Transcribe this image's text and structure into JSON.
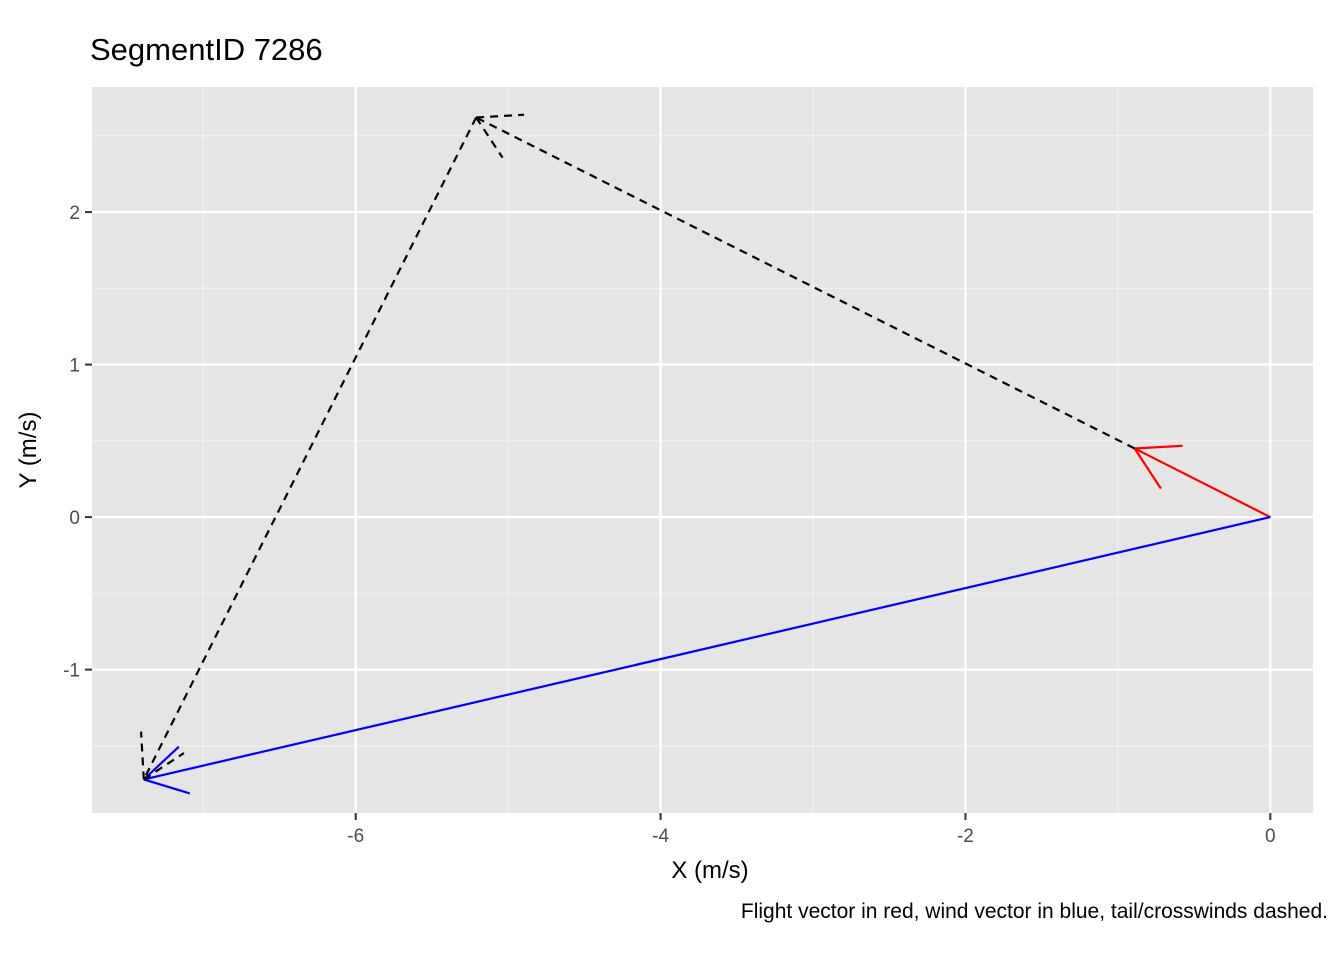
{
  "chart_data": {
    "type": "line",
    "title": "SegmentID 7286",
    "xlabel": "X (m/s)",
    "ylabel": "Y (m/s)",
    "caption": "Flight vector in red, wind vector in blue, tail/crosswinds dashed.",
    "xlim": [
      -7.73,
      0.28
    ],
    "ylim": [
      -1.94,
      2.82
    ],
    "x_ticks": [
      -6,
      -4,
      -2,
      0
    ],
    "x_tick_labels": [
      "-6",
      "-4",
      "-2",
      "0"
    ],
    "y_ticks": [
      -1,
      0,
      1,
      2
    ],
    "y_tick_labels": [
      "-1",
      "0",
      "1",
      "2"
    ],
    "grid": true,
    "background": "#e5e5e5",
    "series": [
      {
        "color": "#ff0000",
        "linestyle": "solid",
        "arrow": true,
        "from": [
          0,
          0
        ],
        "to": [
          -0.89,
          0.45
        ]
      },
      {
        "color": "#0000ff",
        "linestyle": "solid",
        "arrow": true,
        "from": [
          0,
          0
        ],
        "to": [
          -7.39,
          -1.72
        ]
      },
      {
        "color": "#000000",
        "linestyle": "dashed",
        "arrow": true,
        "from": [
          -0.89,
          0.45
        ],
        "to": [
          -5.21,
          2.62
        ]
      },
      {
        "color": "#000000",
        "linestyle": "dashed",
        "arrow": true,
        "from": [
          -5.21,
          2.62
        ],
        "to": [
          -7.39,
          -1.72
        ]
      }
    ]
  }
}
